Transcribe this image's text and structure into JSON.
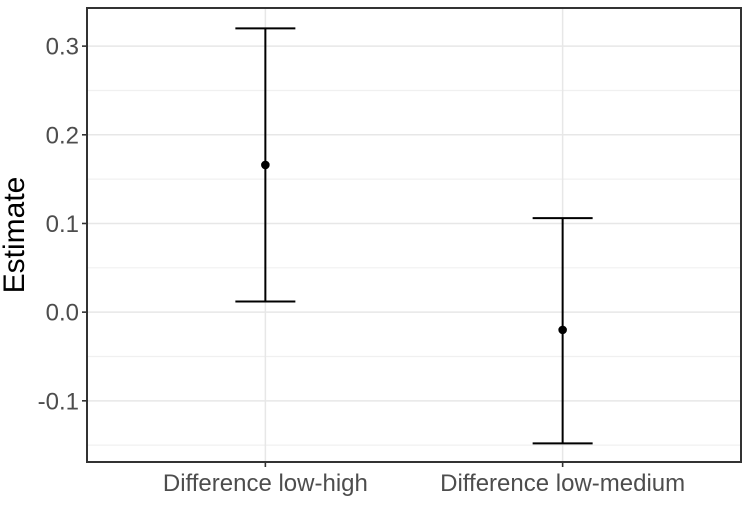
{
  "chart_data": {
    "type": "errorbar",
    "title": "",
    "xlabel": "",
    "ylabel": "Estimate",
    "categories": [
      "Difference low-high",
      "Difference low-medium"
    ],
    "series": [
      {
        "name": "Estimate",
        "values": [
          0.166,
          -0.02
        ],
        "ci_lower": [
          0.012,
          -0.148
        ],
        "ci_upper": [
          0.32,
          0.106
        ]
      }
    ],
    "ylim": [
      -0.169,
      0.343
    ],
    "yticks": [
      0.3,
      0.2,
      0.1,
      0.0,
      -0.1
    ],
    "ytick_labels": [
      "0.3",
      "0.2",
      "0.1",
      "0.0",
      "-0.1"
    ],
    "yminor_ticks": [
      0.25,
      0.15,
      0.05,
      -0.05,
      -0.15
    ],
    "legend_position": "none",
    "grid": {
      "horizontal_major": true,
      "horizontal_minor": true,
      "vertical_major_at_categories": true
    }
  },
  "styles": {
    "background": "#ffffff",
    "panel_background": "#ffffff",
    "panel_border": "#333333",
    "grid_major": "#e7e7e7",
    "grid_minor": "#f0f0f0",
    "errorbar_color": "#000000",
    "point_color": "#000000",
    "axis_text_color": "#4d4d4d",
    "axis_title_color": "#000000",
    "tick_color": "#333333"
  }
}
